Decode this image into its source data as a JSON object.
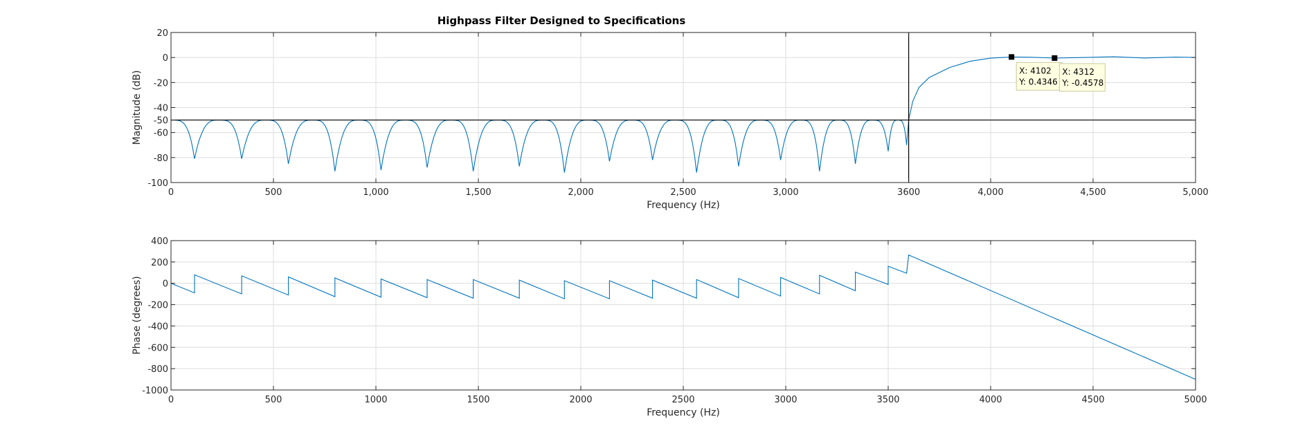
{
  "chart_data": [
    {
      "type": "line",
      "title": "Highpass Filter Designed to Specifications",
      "xlabel": "Frequency (Hz)",
      "ylabel": "Magnitude (dB)",
      "xlim": [
        0,
        5000
      ],
      "ylim": [
        -100,
        20
      ],
      "grid": true,
      "xticks": [
        0,
        500,
        1000,
        1500,
        2000,
        2500,
        3000,
        3600,
        4000,
        4500,
        5000
      ],
      "xtick_labels": [
        "0",
        "500",
        "1,000",
        "1,500",
        "2,000",
        "2,500",
        "3,000",
        "3600",
        "4,000",
        "4,500",
        "5,000"
      ],
      "yticks": [
        20,
        0,
        -20,
        -40,
        -50,
        -60,
        -80,
        -100
      ],
      "ytick_labels": [
        "20",
        "0",
        "-20",
        "-40",
        "-50",
        "-60",
        "-80",
        "-100"
      ],
      "series": [
        {
          "color": "#0072bd",
          "stopband_ripple_db": -50,
          "stopband_nulls": [
            {
              "x": 115,
              "y": -81
            },
            {
              "x": 345,
              "y": -81
            },
            {
              "x": 573,
              "y": -85
            },
            {
              "x": 800,
              "y": -91
            },
            {
              "x": 1025,
              "y": -90
            },
            {
              "x": 1250,
              "y": -88
            },
            {
              "x": 1475,
              "y": -91
            },
            {
              "x": 1700,
              "y": -87
            },
            {
              "x": 1920,
              "y": -92
            },
            {
              "x": 2140,
              "y": -83
            },
            {
              "x": 2350,
              "y": -82
            },
            {
              "x": 2565,
              "y": -92
            },
            {
              "x": 2770,
              "y": -87
            },
            {
              "x": 2975,
              "y": -82
            },
            {
              "x": 3165,
              "y": -91
            },
            {
              "x": 3340,
              "y": -85
            },
            {
              "x": 3500,
              "y": -75
            },
            {
              "x": 3590,
              "y": -70
            }
          ],
          "passband": [
            {
              "x": 3600,
              "y": -50
            },
            {
              "x": 3620,
              "y": -35
            },
            {
              "x": 3650,
              "y": -24
            },
            {
              "x": 3700,
              "y": -16
            },
            {
              "x": 3800,
              "y": -8
            },
            {
              "x": 3900,
              "y": -3
            },
            {
              "x": 4000,
              "y": -0.5
            },
            {
              "x": 4102,
              "y": 0.4346
            },
            {
              "x": 4200,
              "y": 0.2
            },
            {
              "x": 4312,
              "y": -0.4578
            },
            {
              "x": 4450,
              "y": 0.0
            },
            {
              "x": 4600,
              "y": 0.6
            },
            {
              "x": 4750,
              "y": -0.4
            },
            {
              "x": 4900,
              "y": 0.3
            },
            {
              "x": 5000,
              "y": 0.1
            }
          ]
        }
      ],
      "reference_lines": [
        {
          "orientation": "horizontal",
          "value": -50,
          "color": "#000000"
        },
        {
          "orientation": "vertical",
          "value": 3600,
          "color": "#000000"
        }
      ],
      "datatips": [
        {
          "x": 4102,
          "y": 0.4346,
          "line1": "X: 4102",
          "line2": "Y: 0.4346"
        },
        {
          "x": 4312,
          "y": -0.4578,
          "line1": "X: 4312",
          "line2": "Y: -0.4578"
        }
      ]
    },
    {
      "type": "line",
      "xlabel": "Frequency (Hz)",
      "ylabel": "Phase (degrees)",
      "xlim": [
        0,
        5000
      ],
      "ylim": [
        -1000,
        400
      ],
      "grid": true,
      "xticks": [
        0,
        500,
        1000,
        1500,
        2000,
        2500,
        3000,
        3500,
        4000,
        4500,
        5000
      ],
      "xtick_labels": [
        "0",
        "500",
        "1000",
        "1500",
        "2000",
        "2500",
        "3000",
        "3500",
        "4000",
        "4500",
        "5000"
      ],
      "yticks": [
        400,
        200,
        0,
        -200,
        -400,
        -600,
        -800,
        -1000
      ],
      "ytick_labels": [
        "400",
        "200",
        "0",
        "-200",
        "-400",
        "-600",
        "-800",
        "-1000"
      ],
      "series": [
        {
          "color": "#0072bd",
          "points": [
            {
              "x": 0,
              "y": 0
            },
            {
              "x": 115,
              "y": -90
            },
            {
              "x": 115,
              "y": 80
            },
            {
              "x": 345,
              "y": -100
            },
            {
              "x": 345,
              "y": 70
            },
            {
              "x": 573,
              "y": -110
            },
            {
              "x": 573,
              "y": 60
            },
            {
              "x": 800,
              "y": -125
            },
            {
              "x": 800,
              "y": 50
            },
            {
              "x": 1025,
              "y": -130
            },
            {
              "x": 1025,
              "y": 40
            },
            {
              "x": 1250,
              "y": -135
            },
            {
              "x": 1250,
              "y": 35
            },
            {
              "x": 1475,
              "y": -140
            },
            {
              "x": 1475,
              "y": 35
            },
            {
              "x": 1700,
              "y": -140
            },
            {
              "x": 1700,
              "y": 30
            },
            {
              "x": 1920,
              "y": -145
            },
            {
              "x": 1920,
              "y": 25
            },
            {
              "x": 2140,
              "y": -145
            },
            {
              "x": 2140,
              "y": 25
            },
            {
              "x": 2350,
              "y": -140
            },
            {
              "x": 2350,
              "y": 30
            },
            {
              "x": 2565,
              "y": -140
            },
            {
              "x": 2565,
              "y": 35
            },
            {
              "x": 2770,
              "y": -135
            },
            {
              "x": 2770,
              "y": 45
            },
            {
              "x": 2975,
              "y": -120
            },
            {
              "x": 2975,
              "y": 55
            },
            {
              "x": 3165,
              "y": -100
            },
            {
              "x": 3165,
              "y": 75
            },
            {
              "x": 3340,
              "y": -70
            },
            {
              "x": 3340,
              "y": 105
            },
            {
              "x": 3500,
              "y": -10
            },
            {
              "x": 3500,
              "y": 160
            },
            {
              "x": 3590,
              "y": 95
            },
            {
              "x": 3600,
              "y": 265
            },
            {
              "x": 5000,
              "y": -900
            }
          ]
        }
      ]
    }
  ]
}
